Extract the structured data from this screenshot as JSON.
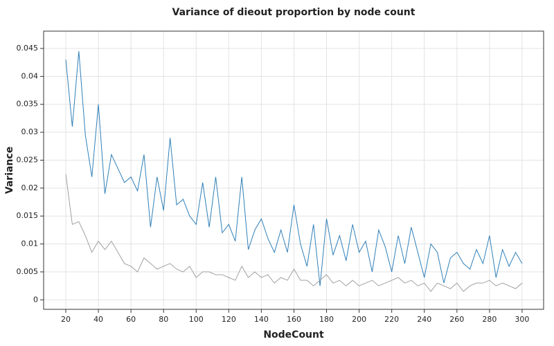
{
  "chart_data": {
    "type": "line",
    "title": "Variance of dieout proportion by node count",
    "x_label": "NodeCount",
    "y_label": "Variance",
    "x": [
      20,
      24,
      28,
      32,
      36,
      40,
      44,
      48,
      52,
      56,
      60,
      64,
      68,
      72,
      76,
      80,
      84,
      88,
      92,
      96,
      100,
      104,
      108,
      112,
      116,
      120,
      124,
      128,
      132,
      136,
      140,
      144,
      148,
      152,
      156,
      160,
      164,
      168,
      172,
      176,
      180,
      184,
      188,
      192,
      196,
      200,
      204,
      208,
      212,
      216,
      220,
      224,
      228,
      232,
      236,
      240,
      244,
      248,
      252,
      256,
      260,
      264,
      268,
      272,
      276,
      280,
      284,
      288,
      292,
      296,
      300
    ],
    "series": [
      {
        "color": "#2e7fb8",
        "values": [
          0.043,
          0.031,
          0.0445,
          0.0295,
          0.022,
          0.035,
          0.019,
          0.026,
          0.0235,
          0.021,
          0.022,
          0.0195,
          0.026,
          0.013,
          0.022,
          0.016,
          0.029,
          0.017,
          0.018,
          0.015,
          0.0135,
          0.021,
          0.013,
          0.022,
          0.012,
          0.0135,
          0.0105,
          0.022,
          0.009,
          0.0125,
          0.0145,
          0.011,
          0.0085,
          0.0125,
          0.0085,
          0.017,
          0.01,
          0.006,
          0.0135,
          0.0025,
          0.0145,
          0.008,
          0.0115,
          0.007,
          0.0135,
          0.0085,
          0.0105,
          0.005,
          0.0125,
          0.0095,
          0.005,
          0.0115,
          0.0065,
          0.013,
          0.0085,
          0.004,
          0.01,
          0.0085,
          0.003,
          0.0075,
          0.0085,
          0.0065,
          0.0055,
          0.009,
          0.0065,
          0.0115,
          0.004,
          0.009,
          0.006,
          0.0085,
          0.0065
        ]
      },
      {
        "color": "#a0a0a0",
        "values": [
          0.0225,
          0.0135,
          0.014,
          0.0115,
          0.0085,
          0.0105,
          0.009,
          0.0105,
          0.0085,
          0.0065,
          0.006,
          0.005,
          0.0075,
          0.0065,
          0.0055,
          0.006,
          0.0065,
          0.0055,
          0.005,
          0.006,
          0.004,
          0.005,
          0.005,
          0.0045,
          0.0045,
          0.004,
          0.0035,
          0.006,
          0.004,
          0.005,
          0.004,
          0.0045,
          0.003,
          0.004,
          0.0035,
          0.0055,
          0.0035,
          0.0035,
          0.0025,
          0.0035,
          0.0045,
          0.003,
          0.0035,
          0.0025,
          0.0035,
          0.0025,
          0.003,
          0.0035,
          0.0025,
          0.003,
          0.0035,
          0.004,
          0.003,
          0.0035,
          0.0025,
          0.003,
          0.0015,
          0.003,
          0.0025,
          0.002,
          0.003,
          0.0015,
          0.0025,
          0.003,
          0.003,
          0.0035,
          0.0025,
          0.003,
          0.0025,
          0.002,
          0.003
        ]
      }
    ],
    "xlim": [
      6.4,
      313.2
    ],
    "ylim": [
      -0.0017,
      0.0481
    ],
    "xticks": [
      20,
      40,
      60,
      80,
      100,
      120,
      140,
      160,
      180,
      200,
      220,
      240,
      260,
      280,
      300
    ],
    "yticks": [
      0,
      0.005,
      0.01,
      0.015,
      0.02,
      0.025,
      0.03,
      0.035,
      0.04,
      0.045
    ],
    "grid": true
  }
}
